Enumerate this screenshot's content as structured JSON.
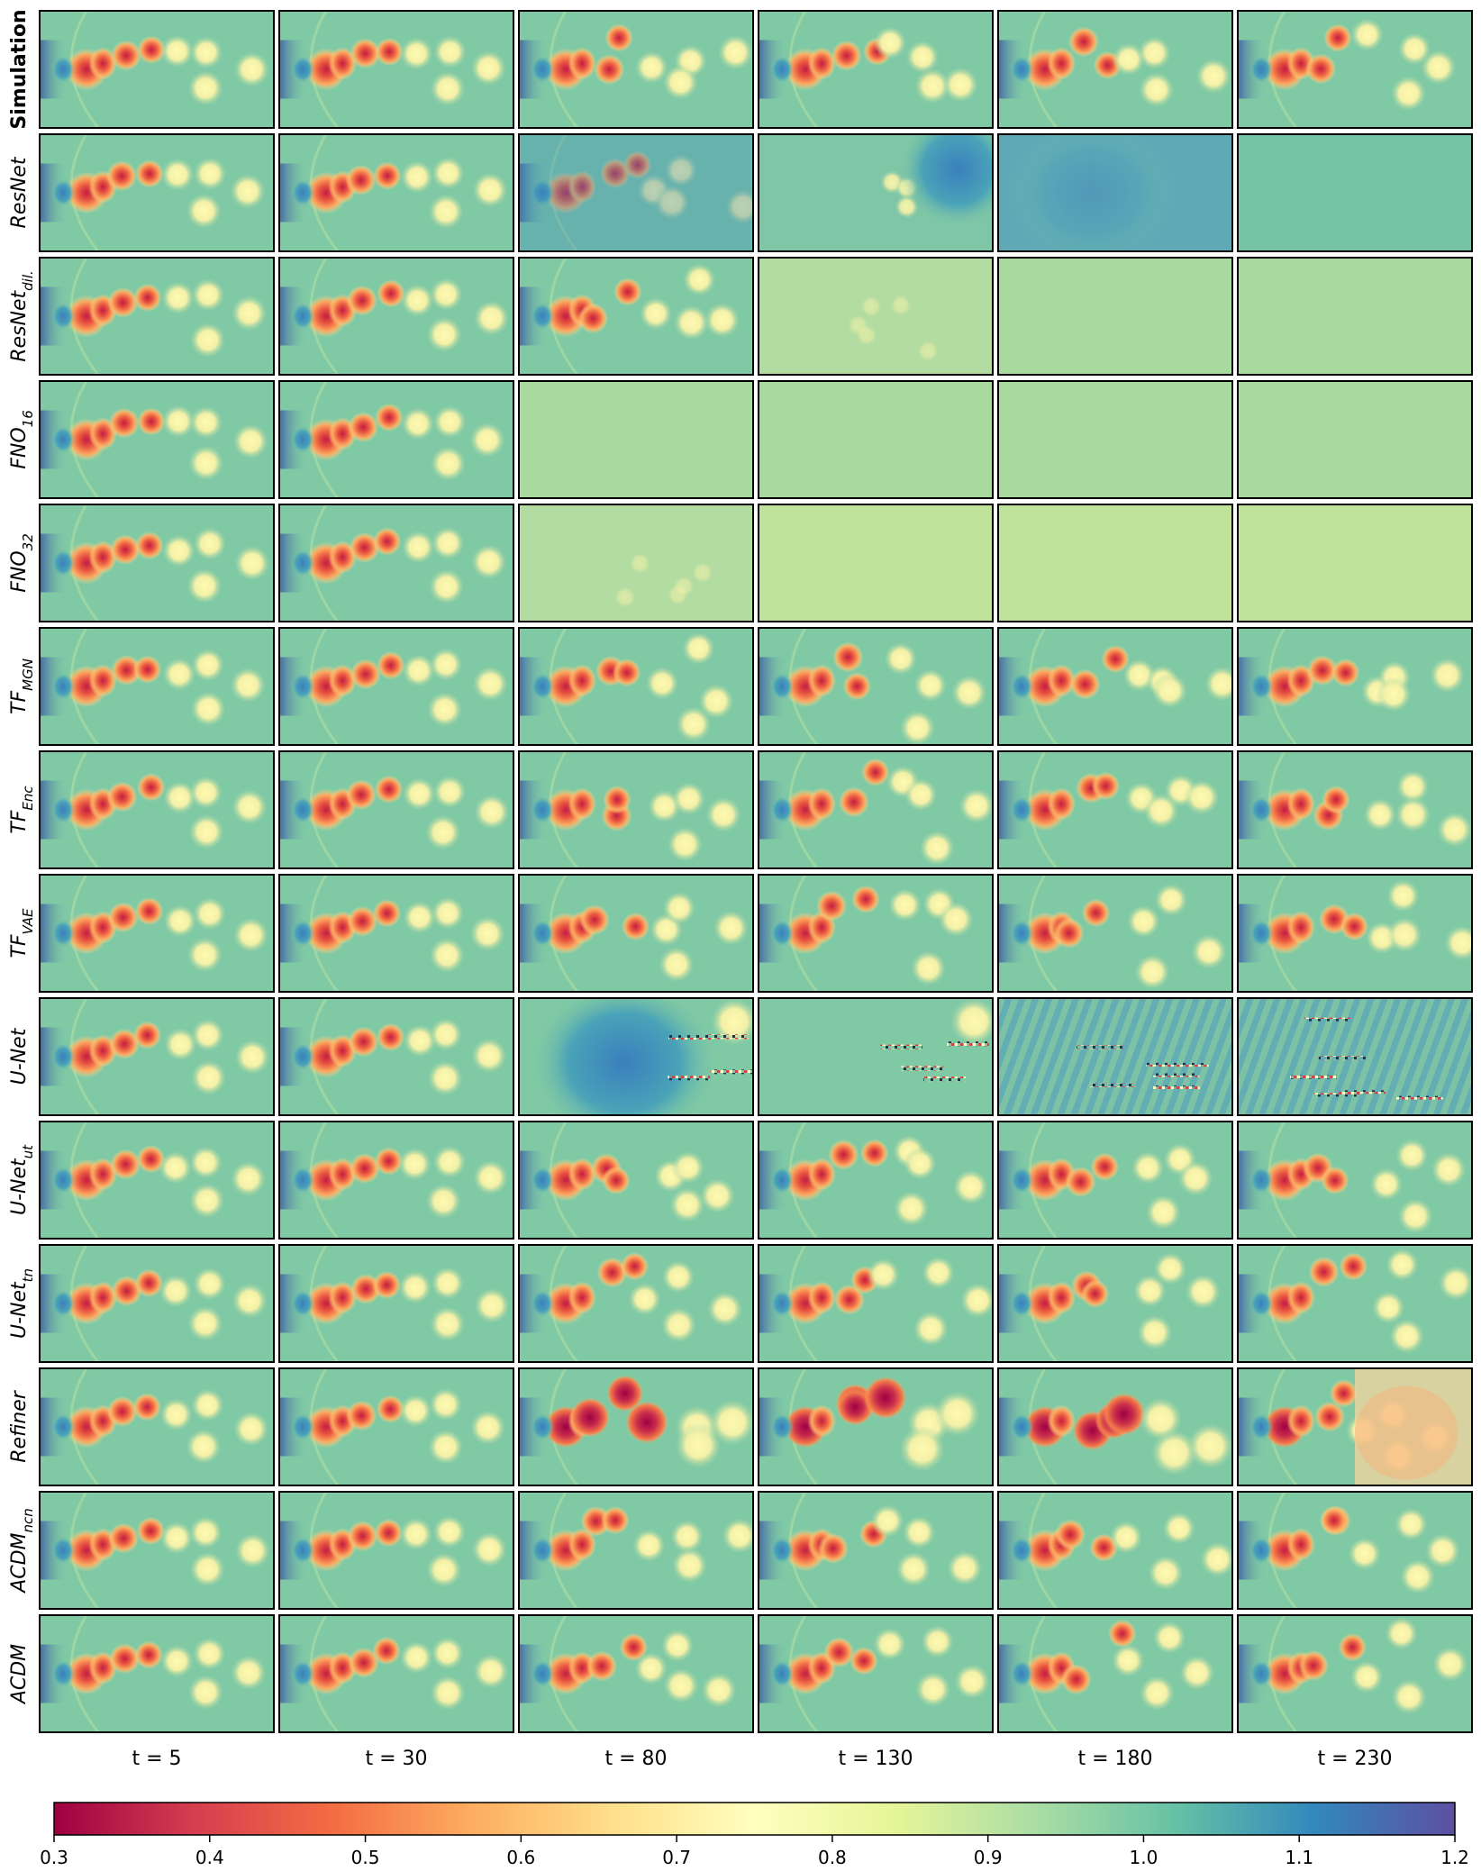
{
  "chart_data": {
    "type": "heatmap",
    "description_kind": "grid of 2D field snapshots (rows = methods, columns = time steps)",
    "rows": [
      {
        "label": "Simulation",
        "label_style": "bold",
        "states": [
          "sim",
          "sim",
          "sim",
          "sim",
          "sim",
          "sim"
        ]
      },
      {
        "label": "ResNet",
        "sub": "",
        "states": [
          "good",
          "good",
          "drift",
          "blur",
          "blank_blue",
          "blank_green"
        ]
      },
      {
        "label": "ResNet",
        "sub": "dil.",
        "states": [
          "good",
          "good",
          "good",
          "faint",
          "blank_light",
          "blank_light"
        ]
      },
      {
        "label": "FNO",
        "sub": "16",
        "states": [
          "good",
          "good",
          "blank_light",
          "blank_light",
          "blank_light",
          "blank_light"
        ]
      },
      {
        "label": "FNO",
        "sub": "32",
        "states": [
          "good",
          "good",
          "faint",
          "blank_yellow",
          "blank_yellow",
          "blank_yellow"
        ]
      },
      {
        "label": "TF",
        "sub": "MGN",
        "states": [
          "good",
          "good",
          "good",
          "good",
          "good",
          "good"
        ]
      },
      {
        "label": "TF",
        "sub": "Enc",
        "states": [
          "good",
          "good",
          "good",
          "good",
          "good",
          "good"
        ]
      },
      {
        "label": "TF",
        "sub": "VAE",
        "states": [
          "good",
          "good",
          "good",
          "good",
          "good",
          "good"
        ]
      },
      {
        "label": "U-Net",
        "sub": "",
        "states": [
          "good",
          "good",
          "noise_blue",
          "noise",
          "noise_stripes",
          "noise_stripes"
        ]
      },
      {
        "label": "U-Net",
        "sub": "ut",
        "states": [
          "good",
          "good",
          "good",
          "good",
          "good",
          "good"
        ]
      },
      {
        "label": "U-Net",
        "sub": "tn",
        "states": [
          "good",
          "good",
          "good",
          "good",
          "good",
          "good"
        ]
      },
      {
        "label": "Refiner",
        "sub": "",
        "states": [
          "good",
          "good",
          "strong",
          "strong",
          "strong",
          "chaos"
        ]
      },
      {
        "label": "ACDM",
        "sub": "ncn",
        "states": [
          "good",
          "good",
          "good",
          "good",
          "good",
          "good"
        ]
      },
      {
        "label": "ACDM",
        "sub": "",
        "states": [
          "good",
          "good",
          "good",
          "good",
          "good",
          "good"
        ]
      }
    ],
    "columns": [
      "t = 5",
      "t = 30",
      "t = 80",
      "t = 130",
      "t = 180",
      "t = 230"
    ],
    "colorbar": {
      "colormap": "Spectral",
      "min": 0.3,
      "max": 1.2,
      "ticks": [
        "0.3",
        "0.4",
        "0.5",
        "0.6",
        "0.7",
        "0.8",
        "0.9",
        "1.0",
        "1.1",
        "1.2"
      ]
    }
  }
}
